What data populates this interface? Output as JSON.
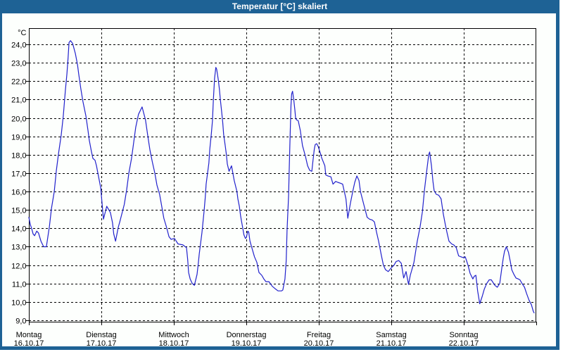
{
  "window": {
    "title": "Temperatur [°C] skaliert"
  },
  "colors": {
    "titlebar": "#1E6295",
    "window_border": "#1E6295",
    "plot_background": "#FDFFFD",
    "grid": "#000000",
    "curve": "#2121CC",
    "text": "#000000"
  },
  "chart_data": {
    "type": "line",
    "title": "Temperatur [°C] skaliert",
    "y_unit_label": "°C",
    "ylim": [
      9,
      24
    ],
    "x_range_hours": [
      0,
      168
    ],
    "grid": true,
    "legend": "none",
    "y_ticks": [
      {
        "value": 24,
        "label": "24,0"
      },
      {
        "value": 23,
        "label": "23,0"
      },
      {
        "value": 22,
        "label": "22,0"
      },
      {
        "value": 21,
        "label": "21,0"
      },
      {
        "value": 20,
        "label": "20,0"
      },
      {
        "value": 19,
        "label": "19,0"
      },
      {
        "value": 18,
        "label": "18,0"
      },
      {
        "value": 17,
        "label": "17,0"
      },
      {
        "value": 16,
        "label": "16,0"
      },
      {
        "value": 15,
        "label": "15,0"
      },
      {
        "value": 14,
        "label": "14,0"
      },
      {
        "value": 13,
        "label": "13,0"
      },
      {
        "value": 12,
        "label": "12,0"
      },
      {
        "value": 11,
        "label": "11,0"
      },
      {
        "value": 10,
        "label": "10,0"
      },
      {
        "value": 9,
        "label": "9,0"
      }
    ],
    "x_axis_days": [
      {
        "day": "Montag",
        "date": "16.10.17"
      },
      {
        "day": "Dienstag",
        "date": "17.10.17"
      },
      {
        "day": "Mittwoch",
        "date": "18.10.17"
      },
      {
        "day": "Donnerstag",
        "date": "19.10.17"
      },
      {
        "day": "Freitag",
        "date": "20.10.17"
      },
      {
        "day": "Samstag",
        "date": "21.10.17"
      },
      {
        "day": "Sonntag",
        "date": "22.10.17"
      }
    ],
    "series": [
      {
        "name": "Temperatur",
        "color": "#2121CC",
        "points_hours_temp": [
          [
            0,
            14.6
          ],
          [
            0.5,
            14.2
          ],
          [
            0.9,
            14.0
          ],
          [
            1.4,
            13.7
          ],
          [
            1.9,
            13.6
          ],
          [
            2.6,
            13.85
          ],
          [
            3.2,
            13.75
          ],
          [
            4.0,
            13.3
          ],
          [
            4.9,
            13.0
          ],
          [
            5.8,
            13.0
          ],
          [
            6.8,
            14.1
          ],
          [
            7.5,
            15.1
          ],
          [
            8.4,
            16.0
          ],
          [
            9.1,
            17.15
          ],
          [
            9.8,
            18.05
          ],
          [
            10.7,
            19.05
          ],
          [
            11.4,
            20.1
          ],
          [
            12.1,
            21.5
          ],
          [
            12.6,
            22.4
          ],
          [
            13.0,
            23.3
          ],
          [
            13.3,
            24.1
          ],
          [
            13.8,
            24.2
          ],
          [
            14.5,
            24.05
          ],
          [
            15.4,
            23.5
          ],
          [
            16.1,
            22.9
          ],
          [
            16.5,
            22.4
          ],
          [
            17.2,
            21.6
          ],
          [
            17.9,
            20.9
          ],
          [
            18.9,
            20.1
          ],
          [
            19.6,
            19.3
          ],
          [
            20.0,
            18.8
          ],
          [
            20.7,
            18.2
          ],
          [
            21.2,
            17.8
          ],
          [
            21.9,
            17.7
          ],
          [
            22.4,
            17.4
          ],
          [
            23.1,
            16.8
          ],
          [
            23.8,
            16.2
          ],
          [
            24.7,
            14.5
          ],
          [
            25.8,
            15.2
          ],
          [
            27.0,
            14.85
          ],
          [
            27.7,
            14.3
          ],
          [
            28.1,
            13.7
          ],
          [
            28.7,
            13.3
          ],
          [
            29.6,
            14.05
          ],
          [
            30.1,
            14.35
          ],
          [
            31.6,
            15.3
          ],
          [
            32.4,
            16.1
          ],
          [
            33.1,
            17.0
          ],
          [
            34.0,
            17.8
          ],
          [
            34.7,
            18.65
          ],
          [
            35.4,
            19.5
          ],
          [
            36.3,
            20.2
          ],
          [
            37.5,
            20.6
          ],
          [
            38.6,
            19.9
          ],
          [
            39.4,
            19.0
          ],
          [
            40.1,
            18.25
          ],
          [
            40.9,
            17.6
          ],
          [
            41.7,
            17.0
          ],
          [
            42.4,
            16.35
          ],
          [
            43.3,
            15.85
          ],
          [
            44.0,
            15.2
          ],
          [
            44.7,
            14.55
          ],
          [
            45.6,
            14.05
          ],
          [
            46.4,
            13.55
          ],
          [
            47.1,
            13.4
          ],
          [
            48.2,
            13.45
          ],
          [
            49.4,
            13.15
          ],
          [
            51.0,
            13.1
          ],
          [
            52.2,
            12.95
          ],
          [
            52.6,
            12.3
          ],
          [
            52.9,
            11.6
          ],
          [
            53.4,
            11.25
          ],
          [
            54.1,
            11.0
          ],
          [
            54.8,
            10.9
          ],
          [
            55.7,
            11.5
          ],
          [
            56.1,
            12.1
          ],
          [
            56.4,
            12.6
          ],
          [
            57.3,
            13.75
          ],
          [
            58.0,
            14.9
          ],
          [
            58.4,
            15.65
          ],
          [
            58.7,
            16.4
          ],
          [
            59.6,
            17.55
          ],
          [
            59.9,
            18.3
          ],
          [
            60.4,
            19.1
          ],
          [
            60.8,
            19.85
          ],
          [
            61.1,
            21.0
          ],
          [
            61.5,
            22.15
          ],
          [
            61.9,
            22.75
          ],
          [
            62.2,
            22.65
          ],
          [
            62.7,
            22.1
          ],
          [
            63.1,
            21.55
          ],
          [
            63.4,
            21.0
          ],
          [
            63.8,
            20.4
          ],
          [
            64.2,
            19.75
          ],
          [
            64.5,
            19.1
          ],
          [
            65.0,
            18.5
          ],
          [
            65.4,
            18.0
          ],
          [
            65.7,
            17.5
          ],
          [
            66.3,
            17.1
          ],
          [
            67.1,
            17.4
          ],
          [
            68.0,
            16.6
          ],
          [
            68.9,
            16.0
          ],
          [
            69.2,
            15.6
          ],
          [
            69.7,
            15.2
          ],
          [
            70.1,
            14.7
          ],
          [
            70.4,
            14.4
          ],
          [
            70.8,
            14.05
          ],
          [
            71.2,
            13.65
          ],
          [
            71.7,
            13.45
          ],
          [
            72.0,
            13.5
          ],
          [
            72.5,
            13.85
          ],
          [
            72.8,
            13.8
          ],
          [
            73.2,
            13.3
          ],
          [
            73.9,
            12.9
          ],
          [
            74.7,
            12.45
          ],
          [
            75.5,
            12.15
          ],
          [
            76.2,
            11.6
          ],
          [
            77.1,
            11.45
          ],
          [
            77.8,
            11.25
          ],
          [
            78.5,
            11.1
          ],
          [
            79.5,
            11.1
          ],
          [
            80.6,
            10.85
          ],
          [
            81.7,
            10.7
          ],
          [
            82.5,
            10.6
          ],
          [
            83.7,
            10.6
          ],
          [
            84.1,
            10.65
          ],
          [
            84.8,
            11.25
          ],
          [
            85.2,
            12.25
          ],
          [
            85.5,
            13.9
          ],
          [
            86.0,
            15.8
          ],
          [
            86.2,
            17.1
          ],
          [
            86.4,
            18.4
          ],
          [
            86.6,
            19.65
          ],
          [
            86.8,
            20.7
          ],
          [
            87.0,
            21.3
          ],
          [
            87.3,
            21.45
          ],
          [
            87.7,
            21.0
          ],
          [
            88.1,
            20.4
          ],
          [
            88.3,
            20.0
          ],
          [
            88.6,
            19.9
          ],
          [
            89.2,
            19.85
          ],
          [
            89.9,
            19.3
          ],
          [
            90.6,
            18.5
          ],
          [
            91.6,
            17.9
          ],
          [
            92.3,
            17.4
          ],
          [
            93.0,
            17.15
          ],
          [
            93.7,
            17.1
          ],
          [
            94.1,
            17.7
          ],
          [
            94.5,
            18.3
          ],
          [
            94.8,
            18.55
          ],
          [
            95.3,
            18.6
          ],
          [
            95.8,
            18.45
          ],
          [
            96.5,
            18.1
          ],
          [
            96.9,
            17.85
          ],
          [
            98.0,
            17.4
          ],
          [
            98.3,
            16.9
          ],
          [
            99.0,
            16.85
          ],
          [
            100.0,
            16.8
          ],
          [
            100.7,
            16.4
          ],
          [
            101.6,
            16.55
          ],
          [
            102.3,
            16.5
          ],
          [
            103.2,
            16.45
          ],
          [
            103.9,
            16.4
          ],
          [
            105.0,
            15.6
          ],
          [
            105.6,
            14.55
          ],
          [
            106.5,
            15.4
          ],
          [
            107.3,
            16.05
          ],
          [
            107.9,
            16.5
          ],
          [
            108.6,
            16.85
          ],
          [
            109.3,
            16.6
          ],
          [
            109.8,
            16.0
          ],
          [
            110.9,
            15.3
          ],
          [
            112.0,
            14.6
          ],
          [
            112.8,
            14.5
          ],
          [
            113.7,
            14.45
          ],
          [
            114.4,
            14.35
          ],
          [
            115.1,
            13.8
          ],
          [
            115.8,
            13.3
          ],
          [
            116.7,
            12.55
          ],
          [
            117.4,
            12.0
          ],
          [
            118.1,
            11.75
          ],
          [
            119.0,
            11.65
          ],
          [
            120.0,
            11.85
          ],
          [
            120.9,
            12.0
          ],
          [
            121.6,
            12.2
          ],
          [
            122.5,
            12.25
          ],
          [
            123.3,
            12.1
          ],
          [
            124.1,
            11.3
          ],
          [
            124.9,
            11.65
          ],
          [
            125.7,
            10.95
          ],
          [
            126.3,
            11.45
          ],
          [
            127.5,
            12.15
          ],
          [
            128.6,
            13.3
          ],
          [
            129.5,
            14.05
          ],
          [
            130.3,
            14.9
          ],
          [
            131.0,
            16.1
          ],
          [
            131.8,
            17.2
          ],
          [
            132.4,
            18.0
          ],
          [
            132.7,
            18.15
          ],
          [
            133.3,
            17.4
          ],
          [
            133.8,
            16.55
          ],
          [
            134.2,
            16.05
          ],
          [
            134.9,
            15.85
          ],
          [
            135.7,
            15.8
          ],
          [
            136.5,
            15.6
          ],
          [
            137.2,
            14.8
          ],
          [
            137.9,
            14.2
          ],
          [
            138.4,
            13.8
          ],
          [
            139.1,
            13.3
          ],
          [
            140.0,
            13.15
          ],
          [
            140.7,
            13.1
          ],
          [
            141.5,
            12.95
          ],
          [
            142.3,
            12.5
          ],
          [
            143.1,
            12.45
          ],
          [
            143.9,
            12.4
          ],
          [
            144.5,
            12.45
          ],
          [
            145.4,
            12.0
          ],
          [
            146.1,
            11.55
          ],
          [
            147.0,
            11.25
          ],
          [
            147.5,
            11.4
          ],
          [
            148.0,
            11.45
          ],
          [
            148.6,
            10.6
          ],
          [
            149.3,
            9.9
          ],
          [
            150.1,
            10.3
          ],
          [
            150.8,
            10.7
          ],
          [
            151.6,
            11.0
          ],
          [
            152.4,
            11.2
          ],
          [
            153.1,
            11.2
          ],
          [
            154.3,
            10.9
          ],
          [
            155.1,
            10.8
          ],
          [
            155.9,
            11.0
          ],
          [
            156.6,
            11.85
          ],
          [
            157.1,
            12.4
          ],
          [
            157.5,
            12.75
          ],
          [
            158.1,
            13.0
          ],
          [
            158.8,
            12.7
          ],
          [
            159.4,
            12.2
          ],
          [
            159.9,
            11.75
          ],
          [
            160.6,
            11.5
          ],
          [
            161.3,
            11.3
          ],
          [
            162.0,
            11.25
          ],
          [
            162.6,
            11.2
          ],
          [
            163.3,
            11.0
          ],
          [
            164.1,
            10.8
          ],
          [
            164.8,
            10.45
          ],
          [
            165.6,
            10.1
          ],
          [
            166.4,
            9.85
          ],
          [
            167.0,
            9.5
          ],
          [
            167.3,
            9.4
          ]
        ]
      }
    ]
  }
}
